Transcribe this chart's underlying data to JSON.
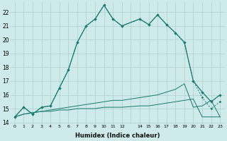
{
  "xlabel": "Humidex (Indice chaleur)",
  "x_hours": [
    0,
    1,
    2,
    3,
    4,
    5,
    6,
    7,
    8,
    9,
    10,
    11,
    12,
    14,
    15,
    16,
    17,
    18,
    19,
    20,
    21,
    22,
    23
  ],
  "line_main": [
    14.4,
    15.1,
    14.6,
    15.1,
    15.2,
    16.5,
    17.8,
    19.8,
    21.0,
    21.5,
    22.5,
    21.5,
    21.0,
    21.5,
    21.1,
    21.8,
    21.1,
    20.5,
    19.8,
    17.0,
    16.2,
    15.5,
    16.0
  ],
  "line_upper": [
    14.4,
    15.1,
    14.6,
    15.1,
    15.2,
    16.5,
    17.8,
    19.8,
    21.0,
    21.5,
    22.5,
    21.5,
    21.0,
    21.5,
    21.1,
    21.8,
    21.1,
    20.5,
    19.8,
    17.0,
    15.8,
    15.0,
    15.5
  ],
  "line_mid": [
    14.4,
    14.6,
    14.7,
    14.8,
    14.9,
    15.0,
    15.1,
    15.2,
    15.3,
    15.4,
    15.5,
    15.6,
    15.6,
    15.8,
    15.9,
    16.0,
    16.2,
    16.4,
    16.8,
    15.1,
    15.2,
    15.6,
    14.4
  ],
  "line_lower": [
    14.4,
    14.6,
    14.7,
    14.8,
    14.8,
    14.9,
    14.9,
    15.0,
    15.0,
    15.0,
    15.1,
    15.1,
    15.1,
    15.2,
    15.2,
    15.3,
    15.4,
    15.5,
    15.6,
    15.7,
    14.4,
    14.4,
    14.4
  ],
  "ylim": [
    13.9,
    22.7
  ],
  "yticks": [
    14,
    15,
    16,
    17,
    18,
    19,
    20,
    21,
    22
  ],
  "xtick_labels": [
    "0",
    "1",
    "2",
    "3",
    "4",
    "5",
    "6",
    "7",
    "8",
    "9",
    "1011",
    "12",
    "",
    "1415",
    "1617",
    "1819",
    "2021",
    "2223"
  ],
  "line_color": "#1a7a6e",
  "bg_color": "#ceeaea",
  "grid_color": "#aed0d0"
}
